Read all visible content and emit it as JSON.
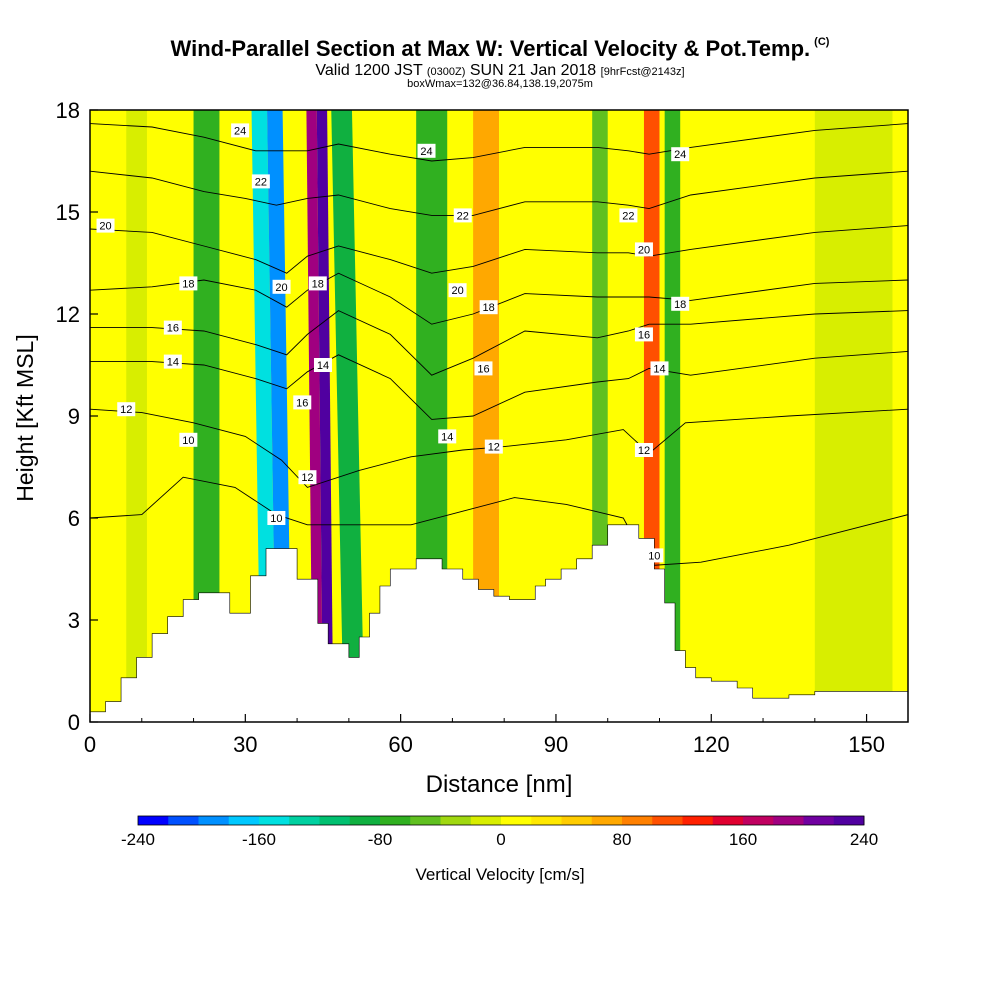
{
  "title": {
    "main": "Wind-Parallel Section at Max W: Vertical Velocity & Pot.Temp.",
    "mark": "(C)",
    "valid_a": "Valid 1200 JST",
    "valid_b": "(0300Z)",
    "valid_c": "SUN 21 Jan 2018",
    "valid_d": "[9hrFcst@2143z]",
    "box": "boxWmax=132@36.84,138.19,2075m"
  },
  "chart_data": {
    "type": "heatmap",
    "xlabel": "Distance [nm]",
    "ylabel": "Height [Kft MSL]",
    "xlim": [
      0,
      158
    ],
    "ylim": [
      0,
      18
    ],
    "xticks": [
      0,
      30,
      60,
      90,
      120,
      150
    ],
    "yticks": [
      0,
      3,
      6,
      9,
      12,
      15,
      18
    ],
    "colorbar": {
      "label": "Vertical Velocity [cm/s]",
      "range": [
        -240,
        240
      ],
      "tick_values": [
        -240,
        -160,
        -80,
        0,
        80,
        160,
        240
      ],
      "tick_labels": [
        "-240",
        "-160",
        "-80",
        "0",
        "80",
        "160",
        "240"
      ],
      "colors": [
        "#0000ff",
        "#0050ff",
        "#0090ff",
        "#00c8ff",
        "#00e0e0",
        "#00d0a0",
        "#00c070",
        "#10b040",
        "#30b020",
        "#60c020",
        "#a0d810",
        "#d8ee00",
        "#ffff00",
        "#ffe800",
        "#ffcc00",
        "#ffa800",
        "#ff8000",
        "#ff5000",
        "#ff2000",
        "#e00030",
        "#c00060",
        "#a00080",
        "#7000a0",
        "#5000a0"
      ]
    },
    "vertical_velocity_bands": [
      {
        "x": 7,
        "w": 4,
        "v": -20
      },
      {
        "x": 20,
        "w": 5,
        "v": -80
      },
      {
        "x": 33,
        "w": 3,
        "v": -150
      },
      {
        "x": 36,
        "w": 3,
        "v": -200
      },
      {
        "x": 43,
        "w": 2,
        "v": 180
      },
      {
        "x": 45,
        "w": 2,
        "v": 240
      },
      {
        "x": 49,
        "w": 4,
        "v": -90
      },
      {
        "x": 63,
        "w": 6,
        "v": -80
      },
      {
        "x": 74,
        "w": 5,
        "v": 70
      },
      {
        "x": 97,
        "w": 3,
        "v": -60
      },
      {
        "x": 107,
        "w": 3,
        "v": 100
      },
      {
        "x": 111,
        "w": 3,
        "v": -80
      },
      {
        "x": 140,
        "w": 15,
        "v": -10
      }
    ],
    "terrain_kft": [
      [
        0,
        0.3
      ],
      [
        3,
        0.6
      ],
      [
        6,
        1.3
      ],
      [
        9,
        1.9
      ],
      [
        12,
        2.6
      ],
      [
        15,
        3.1
      ],
      [
        18,
        3.6
      ],
      [
        21,
        3.8
      ],
      [
        25,
        3.8
      ],
      [
        27,
        3.2
      ],
      [
        29,
        3.2
      ],
      [
        31,
        4.3
      ],
      [
        32,
        4.3
      ],
      [
        34,
        5.1
      ],
      [
        38,
        5.1
      ],
      [
        40,
        4.2
      ],
      [
        42,
        4.2
      ],
      [
        44,
        2.9
      ],
      [
        46,
        2.3
      ],
      [
        48,
        2.3
      ],
      [
        50,
        1.9
      ],
      [
        52,
        2.5
      ],
      [
        54,
        3.2
      ],
      [
        56,
        4.0
      ],
      [
        58,
        4.5
      ],
      [
        63,
        4.8
      ],
      [
        68,
        4.5
      ],
      [
        72,
        4.2
      ],
      [
        75,
        3.9
      ],
      [
        78,
        3.7
      ],
      [
        81,
        3.6
      ],
      [
        84,
        3.6
      ],
      [
        86,
        4.0
      ],
      [
        88,
        4.2
      ],
      [
        91,
        4.5
      ],
      [
        94,
        4.8
      ],
      [
        97,
        5.2
      ],
      [
        100,
        5.8
      ],
      [
        103,
        5.8
      ],
      [
        106,
        5.4
      ],
      [
        109,
        4.5
      ],
      [
        111,
        3.5
      ],
      [
        113,
        2.1
      ],
      [
        115,
        1.6
      ],
      [
        117,
        1.3
      ],
      [
        120,
        1.2
      ],
      [
        125,
        1.0
      ],
      [
        128,
        0.7
      ],
      [
        135,
        0.8
      ],
      [
        140,
        0.9
      ],
      [
        158,
        0.9
      ]
    ],
    "potential_temperature_contours": [
      {
        "level": 10,
        "heights": [
          [
            0,
            6.0
          ],
          [
            10,
            6.1
          ],
          [
            18,
            7.2
          ],
          [
            28,
            6.9
          ],
          [
            36,
            6.1
          ],
          [
            42,
            5.8
          ],
          [
            52,
            5.8
          ],
          [
            62,
            5.8
          ],
          [
            72,
            6.2
          ],
          [
            82,
            6.6
          ],
          [
            92,
            6.4
          ],
          [
            103,
            6.0
          ],
          [
            108,
            4.6
          ],
          [
            118,
            4.7
          ],
          [
            135,
            5.2
          ],
          [
            158,
            6.1
          ]
        ]
      },
      {
        "level": 12,
        "heights": [
          [
            0,
            9.2
          ],
          [
            10,
            9.1
          ],
          [
            20,
            8.8
          ],
          [
            30,
            8.4
          ],
          [
            37,
            7.7
          ],
          [
            42,
            6.9
          ],
          [
            52,
            7.4
          ],
          [
            62,
            7.8
          ],
          [
            72,
            8.0
          ],
          [
            80,
            8.1
          ],
          [
            92,
            8.3
          ],
          [
            103,
            8.6
          ],
          [
            108,
            7.9
          ],
          [
            115,
            8.8
          ],
          [
            135,
            9.0
          ],
          [
            158,
            9.2
          ]
        ]
      },
      {
        "level": 14,
        "heights": [
          [
            0,
            10.6
          ],
          [
            12,
            10.6
          ],
          [
            22,
            10.5
          ],
          [
            32,
            10.1
          ],
          [
            38,
            9.8
          ],
          [
            42,
            10.3
          ],
          [
            48,
            10.8
          ],
          [
            58,
            10.1
          ],
          [
            66,
            8.9
          ],
          [
            74,
            9.0
          ],
          [
            84,
            9.7
          ],
          [
            98,
            10.0
          ],
          [
            104,
            10.1
          ],
          [
            108,
            10.4
          ],
          [
            116,
            10.2
          ],
          [
            140,
            10.7
          ],
          [
            158,
            10.9
          ]
        ]
      },
      {
        "level": 16,
        "heights": [
          [
            0,
            11.6
          ],
          [
            12,
            11.6
          ],
          [
            22,
            11.5
          ],
          [
            32,
            11.1
          ],
          [
            38,
            10.8
          ],
          [
            42,
            11.4
          ],
          [
            48,
            12.1
          ],
          [
            58,
            11.4
          ],
          [
            66,
            10.2
          ],
          [
            74,
            10.7
          ],
          [
            84,
            11.5
          ],
          [
            98,
            11.3
          ],
          [
            104,
            11.5
          ],
          [
            108,
            11.7
          ],
          [
            116,
            11.7
          ],
          [
            140,
            12.0
          ],
          [
            158,
            12.1
          ]
        ]
      },
      {
        "level": 18,
        "heights": [
          [
            0,
            12.7
          ],
          [
            12,
            12.8
          ],
          [
            22,
            13.0
          ],
          [
            32,
            12.7
          ],
          [
            38,
            12.2
          ],
          [
            42,
            12.7
          ],
          [
            48,
            13.2
          ],
          [
            58,
            12.5
          ],
          [
            66,
            11.7
          ],
          [
            74,
            12.0
          ],
          [
            84,
            12.6
          ],
          [
            98,
            12.5
          ],
          [
            104,
            12.5
          ],
          [
            108,
            12.5
          ],
          [
            116,
            12.4
          ],
          [
            140,
            12.9
          ],
          [
            158,
            13.0
          ]
        ]
      },
      {
        "level": 20,
        "heights": [
          [
            0,
            14.5
          ],
          [
            12,
            14.4
          ],
          [
            22,
            14.0
          ],
          [
            32,
            13.6
          ],
          [
            38,
            13.2
          ],
          [
            42,
            13.7
          ],
          [
            48,
            14.0
          ],
          [
            58,
            13.6
          ],
          [
            66,
            13.2
          ],
          [
            74,
            13.4
          ],
          [
            84,
            13.9
          ],
          [
            98,
            13.8
          ],
          [
            104,
            13.8
          ],
          [
            108,
            13.7
          ],
          [
            116,
            13.9
          ],
          [
            140,
            14.4
          ],
          [
            158,
            14.6
          ]
        ]
      },
      {
        "level": 22,
        "heights": [
          [
            0,
            16.2
          ],
          [
            12,
            16.0
          ],
          [
            22,
            15.6
          ],
          [
            30,
            15.4
          ],
          [
            36,
            15.2
          ],
          [
            42,
            15.4
          ],
          [
            48,
            15.5
          ],
          [
            58,
            15.1
          ],
          [
            66,
            14.9
          ],
          [
            74,
            14.9
          ],
          [
            84,
            15.3
          ],
          [
            98,
            15.3
          ],
          [
            104,
            15.2
          ],
          [
            108,
            15.1
          ],
          [
            116,
            15.5
          ],
          [
            140,
            16.0
          ],
          [
            158,
            16.2
          ]
        ]
      },
      {
        "level": 24,
        "heights": [
          [
            0,
            17.6
          ],
          [
            12,
            17.5
          ],
          [
            22,
            17.2
          ],
          [
            32,
            16.8
          ],
          [
            38,
            16.8
          ],
          [
            42,
            16.8
          ],
          [
            48,
            17.0
          ],
          [
            58,
            16.7
          ],
          [
            66,
            16.5
          ],
          [
            74,
            16.6
          ],
          [
            84,
            16.9
          ],
          [
            98,
            16.9
          ],
          [
            104,
            16.8
          ],
          [
            108,
            16.7
          ],
          [
            116,
            16.9
          ],
          [
            140,
            17.4
          ],
          [
            158,
            17.6
          ]
        ]
      }
    ],
    "contour_labels": [
      {
        "text": "24",
        "x": 29,
        "y": 17.4
      },
      {
        "text": "22",
        "x": 33,
        "y": 15.9
      },
      {
        "text": "20",
        "x": 3,
        "y": 14.6
      },
      {
        "text": "18",
        "x": 19,
        "y": 12.9
      },
      {
        "text": "20",
        "x": 37,
        "y": 12.8
      },
      {
        "text": "18",
        "x": 44,
        "y": 12.9
      },
      {
        "text": "16",
        "x": 16,
        "y": 11.6
      },
      {
        "text": "14",
        "x": 16,
        "y": 10.6
      },
      {
        "text": "14",
        "x": 45,
        "y": 10.5
      },
      {
        "text": "12",
        "x": 7,
        "y": 9.2
      },
      {
        "text": "16",
        "x": 41,
        "y": 9.4
      },
      {
        "text": "10",
        "x": 19,
        "y": 8.3
      },
      {
        "text": "12",
        "x": 42,
        "y": 7.2
      },
      {
        "text": "10",
        "x": 36,
        "y": 6.0
      },
      {
        "text": "24",
        "x": 65,
        "y": 16.8
      },
      {
        "text": "22",
        "x": 72,
        "y": 14.9
      },
      {
        "text": "20",
        "x": 71,
        "y": 12.7
      },
      {
        "text": "18",
        "x": 77,
        "y": 12.2
      },
      {
        "text": "16",
        "x": 76,
        "y": 10.4
      },
      {
        "text": "14",
        "x": 69,
        "y": 8.4
      },
      {
        "text": "12",
        "x": 78,
        "y": 8.1
      },
      {
        "text": "22",
        "x": 104,
        "y": 14.9
      },
      {
        "text": "20",
        "x": 107,
        "y": 13.9
      },
      {
        "text": "24",
        "x": 114,
        "y": 16.7
      },
      {
        "text": "18",
        "x": 114,
        "y": 12.3
      },
      {
        "text": "16",
        "x": 107,
        "y": 11.4
      },
      {
        "text": "14",
        "x": 110,
        "y": 10.4
      },
      {
        "text": "12",
        "x": 107,
        "y": 8.0
      },
      {
        "text": "10",
        "x": 109,
        "y": 4.9
      }
    ]
  }
}
